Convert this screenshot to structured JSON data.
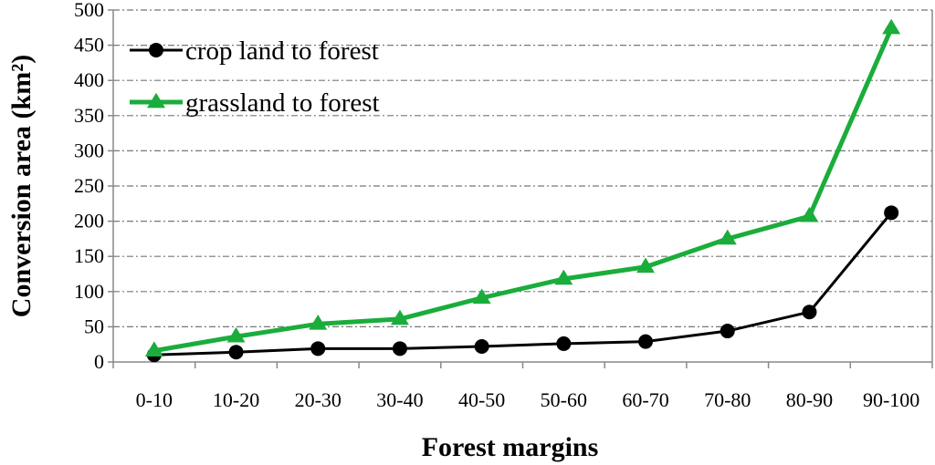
{
  "chart_data": {
    "type": "line",
    "categories": [
      "0-10",
      "10-20",
      "20-30",
      "30-40",
      "40-50",
      "50-60",
      "60-70",
      "70-80",
      "80-90",
      "90-100"
    ],
    "series": [
      {
        "name": "crop land to forest",
        "color": "#000000",
        "marker": "circle",
        "values": [
          10,
          14,
          19,
          19,
          22,
          26,
          29,
          44,
          71,
          212
        ]
      },
      {
        "name": "grassland to forest",
        "color": "#1aad3b",
        "marker": "triangle",
        "values": [
          16,
          36,
          54,
          61,
          91,
          118,
          135,
          175,
          207,
          474
        ]
      }
    ],
    "xlabel": "Forest margins",
    "ylabel": "Conversion area (km²)",
    "ylim": [
      0,
      500
    ],
    "yticks": [
      0,
      50,
      100,
      150,
      200,
      250,
      300,
      350,
      400,
      450,
      500
    ],
    "grid": true,
    "legend_position": "top-left"
  }
}
